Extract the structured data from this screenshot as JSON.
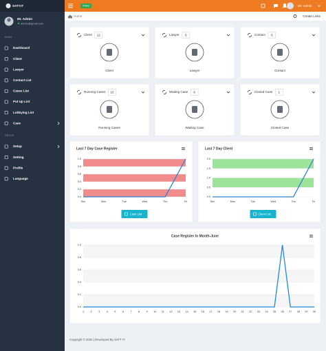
{
  "sidebar": {
    "brand": "SATT.IT",
    "user_name": "Mr. Admin",
    "user_email": "admin@gmail.com",
    "sections": [
      {
        "title": "MAIN",
        "items": [
          {
            "label": "Dashboard"
          },
          {
            "label": "Client"
          },
          {
            "label": "Lawyer"
          },
          {
            "label": "Contact List"
          },
          {
            "label": "Cases List"
          },
          {
            "label": "Put Up List"
          },
          {
            "label": "Lobbying List"
          },
          {
            "label": "Case",
            "submenu": true
          }
        ]
      },
      {
        "title": "SETUP",
        "items": [
          {
            "label": "Setup",
            "submenu": true
          },
          {
            "label": "Setting"
          },
          {
            "label": "Profile"
          },
          {
            "label": "Language"
          }
        ]
      }
    ]
  },
  "header": {
    "status": "Online",
    "user_name": "Mr. Admin",
    "breadcrumb": "Home",
    "action": "Create Links"
  },
  "cards": [
    {
      "title": "Client",
      "count": 12,
      "label": "Client"
    },
    {
      "title": "Lawyer",
      "count": 6,
      "label": "Lawyer"
    },
    {
      "title": "Contact",
      "count": 5,
      "label": "Contact"
    },
    {
      "title": "Running Cases",
      "count": 10,
      "label": "Running Cases"
    },
    {
      "title": "Waiting Case",
      "count": 6,
      "label": "Waiting Case"
    },
    {
      "title": "Closed Case",
      "count": 1,
      "label": "Closed Case"
    }
  ],
  "chart_data": [
    {
      "type": "line",
      "title": "Last 7 Day Case Register",
      "categories": [
        "Sun",
        "Mon",
        "Tue",
        "Wed",
        "Thu",
        "Fri"
      ],
      "values": [
        0,
        0,
        0,
        0,
        0,
        1
      ],
      "color": "#2f80d6",
      "bands": "#f08c8c",
      "ylim": [
        0,
        1
      ],
      "yticks": [
        {
          "value": 0,
          "label": "0.0"
        },
        0.2,
        0.4,
        0.6,
        0.8,
        {
          "value": 1,
          "label": "1.0"
        }
      ],
      "button": "Case List"
    },
    {
      "type": "line",
      "title": "Last 7 Day Client",
      "categories": [
        "Sun",
        "Mon",
        "Tue",
        "Wed",
        "Thu",
        "Fri"
      ],
      "values": [
        0,
        0,
        0,
        0,
        0,
        2
      ],
      "color": "#2f80d6",
      "bands": "#9ee39a",
      "ylim": [
        0,
        2
      ],
      "yticks": [
        {
          "value": 0,
          "label": "0.0"
        },
        0.5,
        {
          "value": 1,
          "label": "1.0"
        },
        1.5,
        {
          "value": 2,
          "label": "2.0"
        }
      ],
      "button": "Client List"
    },
    {
      "type": "line",
      "title": "Case Register In Month-June",
      "categories": [
        1,
        2,
        3,
        4,
        5,
        6,
        7,
        8,
        9,
        10,
        11,
        12,
        13,
        14,
        15,
        16,
        17,
        18,
        19,
        20,
        21,
        22,
        23,
        24,
        25,
        26,
        27,
        28,
        29,
        30
      ],
      "values": [
        0,
        0,
        0,
        0,
        0,
        0,
        0,
        0,
        0,
        0,
        0,
        0,
        0,
        0,
        0,
        0,
        0,
        0,
        0,
        0,
        0,
        0,
        0,
        0,
        0,
        1,
        0,
        0,
        0,
        0
      ],
      "color": "#1e88e5",
      "bands": "#f5f5f5",
      "ylim": [
        0,
        1
      ],
      "yticks": [
        {
          "value": 0,
          "label": "0.0"
        },
        0.2,
        0.4,
        0.6,
        0.8,
        {
          "value": 1,
          "label": "1.0"
        }
      ]
    }
  ],
  "footer": {
    "copyright": "Copyright © 2020 | Developed By SATT IT"
  }
}
